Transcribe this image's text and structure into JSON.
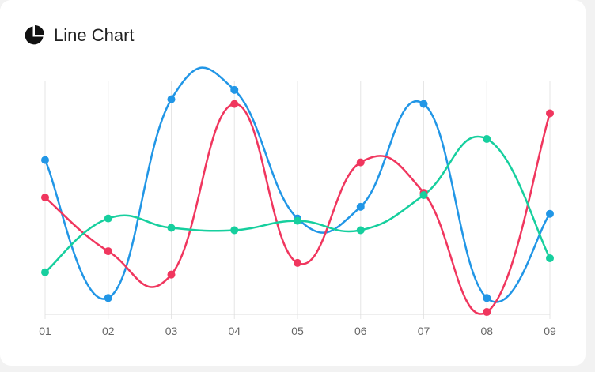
{
  "card": {
    "title": "Line Chart",
    "icon": "pie-chart-icon"
  },
  "chart_data": {
    "type": "line",
    "title": "Line Chart",
    "categories": [
      "01",
      "02",
      "03",
      "04",
      "05",
      "06",
      "07",
      "08",
      "09"
    ],
    "ylim": [
      0,
      100
    ],
    "grid": "vertical",
    "legend": "none",
    "smooth": true,
    "series": [
      {
        "color": "#2196e6",
        "values": [
          66,
          7,
          92,
          96,
          41,
          46,
          90,
          7,
          43
        ]
      },
      {
        "color": "#f0365e",
        "values": [
          50,
          27,
          17,
          90,
          22,
          65,
          52,
          1,
          86
        ]
      },
      {
        "color": "#16cf9e",
        "values": [
          18,
          41,
          37,
          36,
          40,
          36,
          51,
          75,
          24
        ]
      }
    ]
  }
}
